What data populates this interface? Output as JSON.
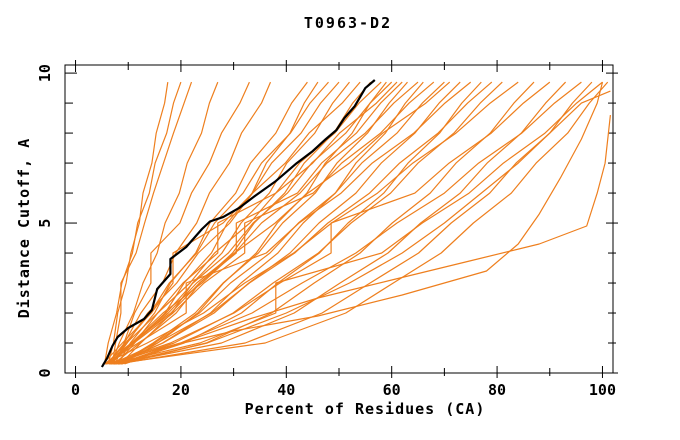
{
  "header": {
    "title": "T0963-D2"
  },
  "chart_data": {
    "type": "line",
    "title": "T0963-D2",
    "xlabel": "Percent of Residues (CA)",
    "ylabel": "Distance Cutoff, A",
    "xlim": [
      -2,
      102
    ],
    "ylim": [
      0,
      10.27
    ],
    "x_major_ticks": [
      0,
      20,
      40,
      60,
      80,
      100
    ],
    "x_minor_ticks": [
      10,
      30,
      50,
      70,
      90
    ],
    "y_major_ticks": [
      0,
      5,
      10
    ],
    "y_minor_ticks": [
      1,
      2,
      3,
      4,
      6,
      7,
      8,
      9
    ],
    "grid": false,
    "legend": "none",
    "colors": {
      "model": "#ee7f1e",
      "reference": "#000000",
      "frame": "#000000"
    },
    "y_levels": [
      0.3,
      1,
      2,
      3,
      4,
      5,
      6,
      7,
      8,
      9,
      9.7
    ],
    "reference_series": {
      "name": "target-curve",
      "points": [
        [
          5,
          0.2
        ],
        [
          6,
          0.5
        ],
        [
          7,
          0.9
        ],
        [
          8,
          1.2
        ],
        [
          10,
          1.5
        ],
        [
          13,
          1.8
        ],
        [
          14.5,
          2.1
        ],
        [
          15.5,
          2.8
        ],
        [
          17,
          3.1
        ],
        [
          18,
          3.3
        ],
        [
          18,
          3.8
        ],
        [
          21,
          4.2
        ],
        [
          24,
          4.8
        ],
        [
          25.5,
          5.05
        ],
        [
          28,
          5.2
        ],
        [
          31,
          5.5
        ],
        [
          34,
          5.9
        ],
        [
          38,
          6.4
        ],
        [
          42,
          7.0
        ],
        [
          45,
          7.4
        ],
        [
          47.5,
          7.8
        ],
        [
          49.5,
          8.1
        ],
        [
          51,
          8.5
        ],
        [
          53,
          8.9
        ],
        [
          54,
          9.2
        ],
        [
          55,
          9.5
        ],
        [
          56.8,
          9.77
        ]
      ]
    },
    "series": [
      {
        "xs": [
          6.2,
          7.2,
          8.0,
          9.6,
          10.5,
          12.1,
          12.8,
          14.5,
          15.3,
          16.9,
          17.5
        ]
      },
      {
        "xs": [
          5.5,
          6.2,
          7.8,
          8.8,
          10.8,
          11.8,
          14.0,
          15.1,
          17.3,
          18.6,
          20
        ]
      },
      {
        "xs": [
          7.0,
          7.6,
          8.6,
          8.6,
          11.5,
          13.1,
          14.8,
          16.7,
          18.6,
          20.6,
          22
        ]
      },
      {
        "xs": [
          6.8,
          8.3,
          11.0,
          12.8,
          15.5,
          17.0,
          19.7,
          21.2,
          23.9,
          25.4,
          27
        ]
      },
      {
        "xs": [
          7.5,
          9.2,
          11.2,
          14.3,
          14.3,
          19.8,
          22.0,
          25.4,
          27.7,
          31.2,
          33
        ]
      },
      {
        "xs": [
          6,
          9.3,
          12.4,
          16.5,
          19.0,
          23.0,
          25.4,
          29.2,
          31.5,
          35.3,
          37
        ]
      },
      {
        "xs": [
          8,
          10.4,
          15,
          18,
          22.8,
          25.5,
          30.4,
          33.2,
          38,
          41,
          44
        ]
      },
      {
        "xs": [
          6.5,
          11.0,
          17.0,
          20.6,
          25.8,
          28.8,
          33.5,
          36.2,
          40.7,
          43.4,
          46
        ]
      },
      {
        "xs": [
          7,
          9.5,
          14.2,
          17.8,
          23,
          26.4,
          31.8,
          35.3,
          40.8,
          44.5,
          48
        ]
      },
      {
        "xs": [
          5.2,
          8.9,
          14.4,
          18.5,
          18.5,
          28.0,
          33.6,
          37.2,
          42.8,
          46.5,
          50
        ]
      },
      {
        "xs": [
          8.5,
          12.4,
          18.3,
          22.2,
          27.8,
          31.4,
          36.8,
          40.1,
          45.4,
          48.8,
          52
        ]
      },
      {
        "xs": [
          6.8,
          9.8,
          13.7,
          19.2,
          23.3,
          29.3,
          33.6,
          39.8,
          44.3,
          50.6,
          54
        ]
      },
      {
        "xs": [
          7.2,
          12.2,
          19.1,
          23.6,
          29.8,
          33.9,
          39.7,
          43.4,
          49,
          52.6,
          56
        ]
      },
      {
        "xs": [
          5.8,
          9.7,
          15.6,
          20.4,
          27,
          27,
          38,
          42.5,
          49.2,
          53.8,
          58
        ]
      },
      {
        "xs": [
          8.8,
          15.6,
          23.2,
          28.1,
          34.3,
          38.3,
          43.9,
          47.4,
          52.5,
          55.9,
          59
        ]
      },
      {
        "xs": [
          6.3,
          10.8,
          17.2,
          22.3,
          29,
          33.7,
          40.2,
          44.8,
          51.3,
          55.9,
          60
        ]
      },
      {
        "xs": [
          7.8,
          11.2,
          15.6,
          21.7,
          26.4,
          33.1,
          38,
          45,
          50.1,
          57.1,
          61
        ]
      },
      {
        "xs": [
          5.5,
          10.6,
          18.1,
          23.5,
          30.5,
          30.5,
          42.1,
          46.7,
          53.3,
          57.9,
          62
        ]
      },
      {
        "xs": [
          8.2,
          14.7,
          22.7,
          28,
          34.7,
          39.3,
          45.5,
          49.6,
          55.4,
          59.5,
          63
        ]
      },
      {
        "xs": [
          6.6,
          11,
          17.6,
          23,
          30.2,
          35.3,
          42.6,
          47.7,
          55,
          60.4,
          65
        ]
      },
      {
        "xs": [
          7.4,
          16.5,
          25.6,
          31.4,
          38.4,
          43.2,
          49.3,
          53.2,
          58.8,
          62.6,
          66
        ]
      },
      {
        "xs": [
          5.9,
          11.1,
          18.5,
          24.4,
          32.1,
          32.1,
          45.1,
          50.5,
          57.9,
          63.3,
          68
        ]
      },
      {
        "xs": [
          8.6,
          15,
          23.5,
          29.4,
          36.9,
          42.3,
          49.3,
          54.3,
          61,
          65.8,
          70
        ]
      },
      {
        "xs": [
          6.1,
          10.6,
          16.6,
          24,
          30.2,
          37.9,
          44.1,
          52,
          58.3,
          66.5,
          71
        ]
      },
      {
        "xs": [
          7.7,
          16.6,
          26.3,
          32.9,
          40.7,
          46.2,
          53.2,
          58,
          64.4,
          69,
          73
        ]
      },
      {
        "xs": [
          5.6,
          11.9,
          21,
          21,
          36.2,
          42.4,
          50.4,
          56.3,
          64.2,
          70.1,
          75
        ]
      },
      {
        "xs": [
          8.3,
          20.6,
          31.5,
          38.4,
          46.3,
          51.7,
          58.5,
          63.1,
          69.1,
          73.3,
          77
        ]
      },
      {
        "xs": [
          6.9,
          15.5,
          25.8,
          33,
          41.6,
          47.9,
          55.8,
          61.5,
          68.8,
          74.4,
          79
        ]
      },
      {
        "xs": [
          7.1,
          18.7,
          29.9,
          37.5,
          46.1,
          52.3,
          59.8,
          65,
          71.8,
          76.8,
          81
        ]
      },
      {
        "xs": [
          5.4,
          13.6,
          24.3,
          32.1,
          41.4,
          48.6,
          57.3,
          64,
          72.2,
          78.7,
          84
        ]
      },
      {
        "xs": [
          8.7,
          24.8,
          37.2,
          45.3,
          54,
          60.1,
          67.3,
          72.2,
          78.7,
          83.2,
          87
        ]
      },
      {
        "xs": [
          6.4,
          18,
          30.1,
          38.8,
          48.5,
          48.5,
          64.4,
          70.9,
          78.9,
          85,
          90
        ]
      },
      {
        "xs": [
          7.6,
          27.7,
          41.5,
          50.2,
          59.3,
          65.5,
          73,
          78.1,
          84.6,
          89.2,
          93
        ]
      },
      {
        "xs": [
          5.7,
          19.9,
          33.5,
          43,
          53.2,
          61,
          70,
          76.5,
          84.7,
          90.9,
          96
        ]
      },
      {
        "xs": [
          8.1,
          32.2,
          46.8,
          55.9,
          65.1,
          71.3,
          78.6,
          83.6,
          90,
          94.3,
          98
        ]
      },
      {
        "xs": [
          6.7,
          23.6,
          38,
          38,
          58.1,
          65.8,
          74.7,
          81.2,
          89.1,
          95.1,
          100
        ]
      },
      {
        "xs": [
          7.3,
          36,
          51.3,
          60.3,
          69.4,
          75.5,
          82.7,
          87.4,
          93.4,
          97.5,
          101
        ]
      },
      {
        "points": [
          [
            8.9,
            0.35
          ],
          [
            25,
            1
          ],
          [
            40,
            2
          ],
          [
            52,
            3
          ],
          [
            62,
            4
          ],
          [
            70,
            5
          ],
          [
            77,
            6
          ],
          [
            84,
            7
          ],
          [
            90,
            8
          ],
          [
            96,
            9
          ],
          [
            101.5,
            9.4
          ]
        ]
      },
      {
        "points": [
          [
            9.3,
            0.3
          ],
          [
            20,
            1
          ],
          [
            33,
            1.8
          ],
          [
            46,
            2.5
          ],
          [
            60,
            3.1
          ],
          [
            74,
            3.7
          ],
          [
            88,
            4.3
          ],
          [
            97,
            4.9
          ],
          [
            99,
            6
          ],
          [
            100.5,
            7
          ],
          [
            101.5,
            8.6
          ]
        ]
      },
      {
        "points": [
          [
            8,
            0.3
          ],
          [
            18,
            0.9
          ],
          [
            30,
            1.4
          ],
          [
            46,
            1.9
          ],
          [
            62,
            2.6
          ],
          [
            78,
            3.4
          ],
          [
            84,
            4.3
          ],
          [
            88,
            5.3
          ],
          [
            92,
            6.5
          ],
          [
            96,
            7.8
          ],
          [
            99,
            9
          ],
          [
            100,
            9.7
          ]
        ]
      }
    ]
  }
}
